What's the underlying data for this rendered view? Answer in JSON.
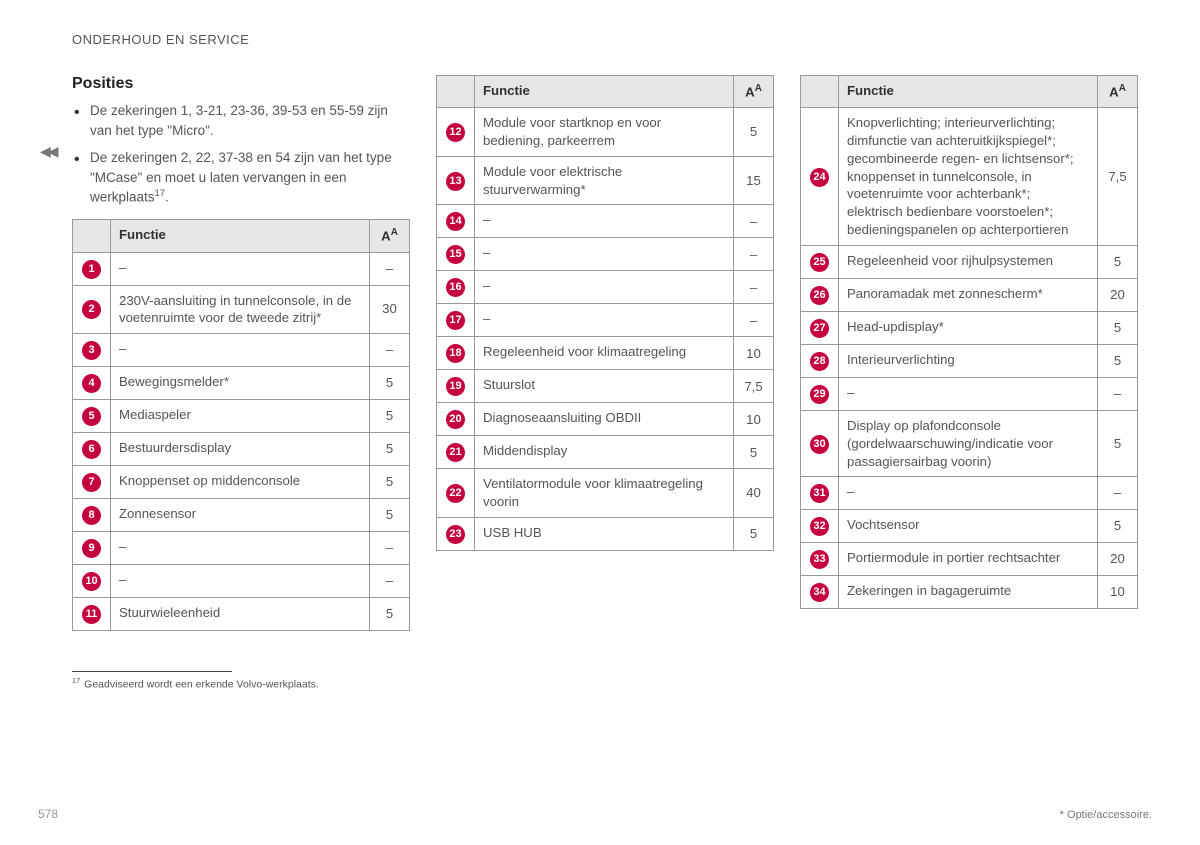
{
  "header": "ONDERHOUD EN SERVICE",
  "section_title": "Posities",
  "bullets": [
    "De zekeringen 1, 3-21, 23-36, 39-53 en 55-59 zijn van het type \"Micro\".",
    "De zekeringen 2, 22, 37-38 en 54 zijn van het type \"MCase\" en moet u laten vervangen in een werkplaats"
  ],
  "bullet2_sup": "17",
  "table_head_functie": "Functie",
  "table_head_amp": "A",
  "table_head_amp_sup": "A",
  "col1": [
    {
      "n": "1",
      "f": "–",
      "a": "–"
    },
    {
      "n": "2",
      "f": "230V-aansluiting in tunnelconsole, in de voetenruimte voor de tweede zitrij*",
      "a": "30"
    },
    {
      "n": "3",
      "f": "–",
      "a": "–"
    },
    {
      "n": "4",
      "f": "Bewegingsmelder*",
      "a": "5"
    },
    {
      "n": "5",
      "f": "Mediaspeler",
      "a": "5"
    },
    {
      "n": "6",
      "f": "Bestuurdersdisplay",
      "a": "5"
    },
    {
      "n": "7",
      "f": "Knoppenset op middenconsole",
      "a": "5"
    },
    {
      "n": "8",
      "f": "Zonnesensor",
      "a": "5"
    },
    {
      "n": "9",
      "f": "–",
      "a": "–"
    },
    {
      "n": "10",
      "f": "–",
      "a": "–"
    },
    {
      "n": "11",
      "f": "Stuurwieleenheid",
      "a": "5"
    }
  ],
  "col2": [
    {
      "n": "12",
      "f": "Module voor startknop en voor bediening, parkeerrem",
      "a": "5"
    },
    {
      "n": "13",
      "f": "Module voor elektrische stuurverwarming*",
      "a": "15"
    },
    {
      "n": "14",
      "f": "–",
      "a": "–"
    },
    {
      "n": "15",
      "f": "–",
      "a": "–"
    },
    {
      "n": "16",
      "f": "–",
      "a": "–"
    },
    {
      "n": "17",
      "f": "–",
      "a": "–"
    },
    {
      "n": "18",
      "f": "Regeleenheid voor klimaatregeling",
      "a": "10"
    },
    {
      "n": "19",
      "f": "Stuurslot",
      "a": "7,5"
    },
    {
      "n": "20",
      "f": "Diagnoseaansluiting OBDII",
      "a": "10"
    },
    {
      "n": "21",
      "f": "Middendisplay",
      "a": "5"
    },
    {
      "n": "22",
      "f": "Ventilatormodule voor klimaatregeling voorin",
      "a": "40"
    },
    {
      "n": "23",
      "f": "USB HUB",
      "a": "5"
    }
  ],
  "col3": [
    {
      "n": "24",
      "f": "Knopverlichting; interieurverlichting; dimfunctie van achteruitkijkspiegel*; gecombineerde regen- en lichtsensor*; knoppenset in tunnelconsole, in voetenruimte voor achterbank*; elektrisch bedienbare voorstoelen*; bedieningspanelen op achterportieren",
      "a": "7,5"
    },
    {
      "n": "25",
      "f": "Regeleenheid voor rijhulpsystemen",
      "a": "5"
    },
    {
      "n": "26",
      "f": "Panoramadak met zonnescherm*",
      "a": "20"
    },
    {
      "n": "27",
      "f": "Head-updisplay*",
      "a": "5"
    },
    {
      "n": "28",
      "f": "Interieurverlichting",
      "a": "5"
    },
    {
      "n": "29",
      "f": "–",
      "a": "–"
    },
    {
      "n": "30",
      "f": "Display op plafondconsole (gordelwaarschuwing/indicatie voor passagiersairbag voorin)",
      "a": "5"
    },
    {
      "n": "31",
      "f": "–",
      "a": "–"
    },
    {
      "n": "32",
      "f": "Vochtsensor",
      "a": "5"
    },
    {
      "n": "33",
      "f": "Portiermodule in portier rechtsachter",
      "a": "20"
    },
    {
      "n": "34",
      "f": "Zekeringen in bagageruimte",
      "a": "10"
    }
  ],
  "footnote_num": "17",
  "footnote_text": "Geadviseerd wordt een erkende Volvo-werkplaats.",
  "page_number": "578",
  "option_note": "* Optie/accessoire.",
  "circle_bg": "#c5003e",
  "circle_fg": "#ffffff",
  "header_bg": "#e6e6e6",
  "border_color": "#999999"
}
